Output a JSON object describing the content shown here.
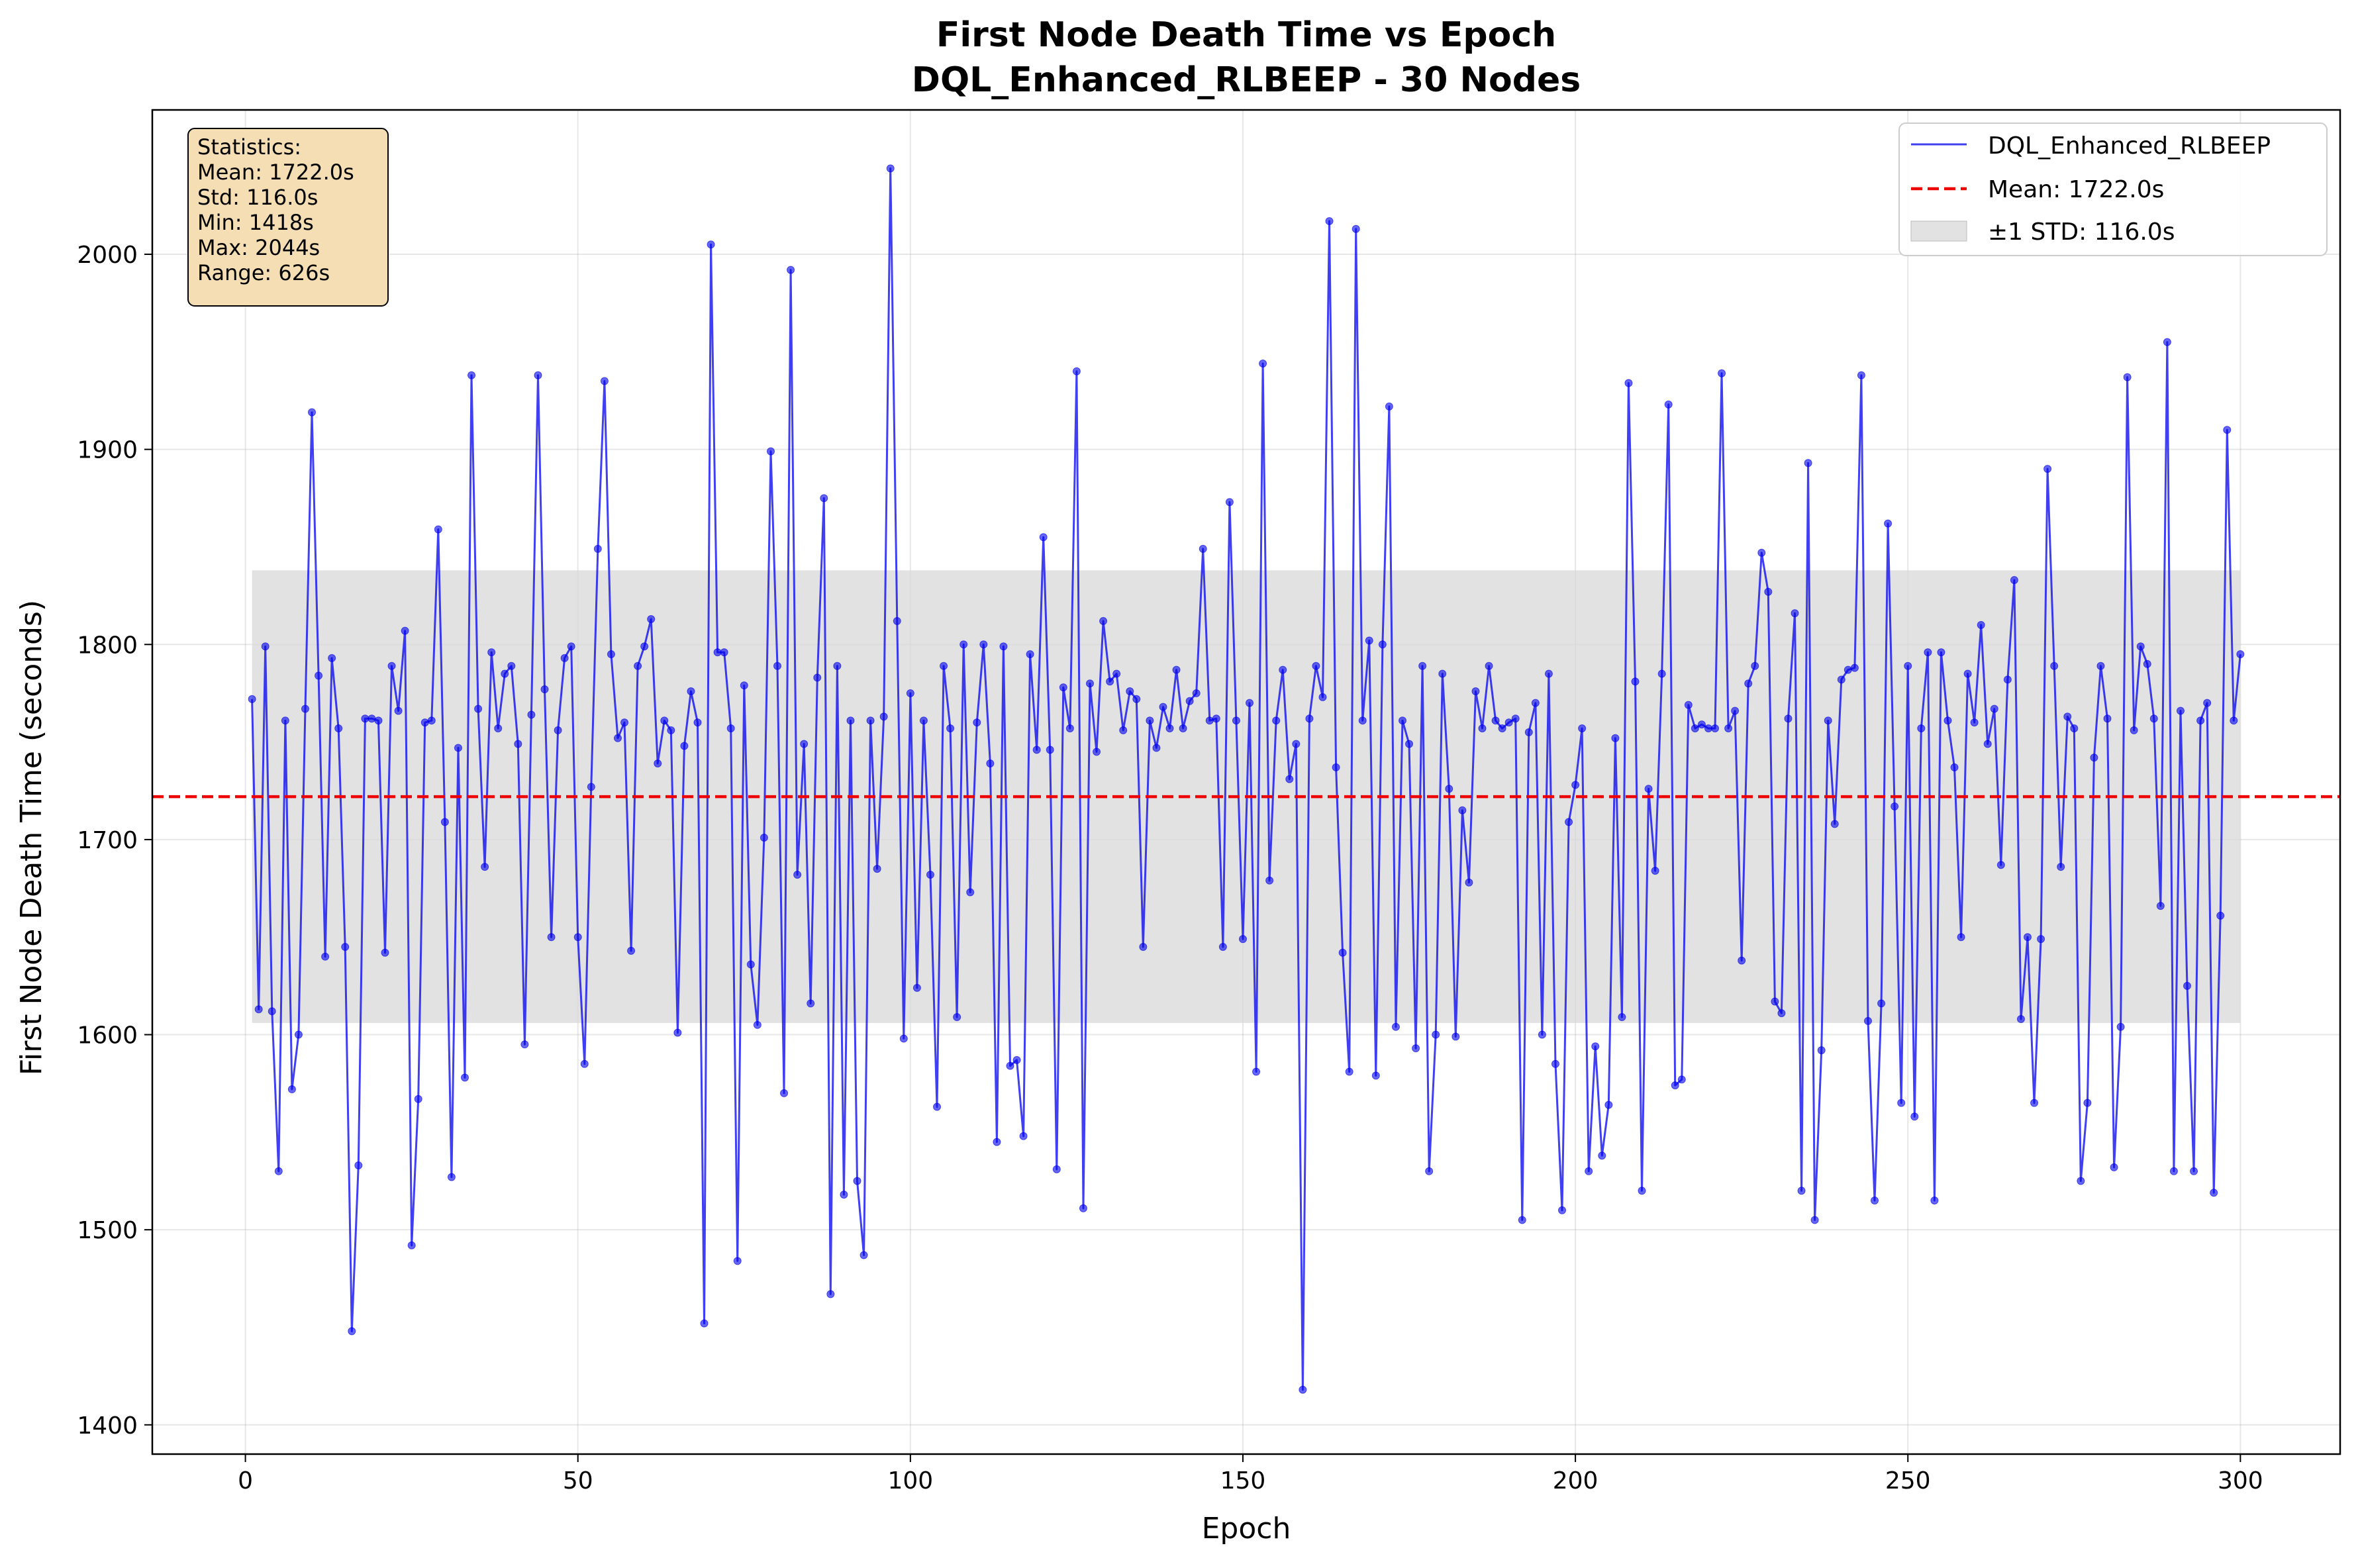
{
  "chart_data": {
    "type": "line",
    "title_line1": "First Node Death Time vs Epoch",
    "title_line2": "DQL_Enhanced_RLBEEP - 30 Nodes",
    "xlabel": "Epoch",
    "ylabel": "First Node Death Time (seconds)",
    "xlim": [
      -14,
      315
    ],
    "ylim": [
      1385,
      2074
    ],
    "xticks": [
      0,
      50,
      100,
      150,
      200,
      250,
      300
    ],
    "yticks": [
      1400,
      1500,
      1600,
      1700,
      1800,
      1900,
      2000
    ],
    "grid": true,
    "legend_position": "top-right",
    "legend": {
      "series_label": "DQL_Enhanced_RLBEEP",
      "mean_label": "Mean: 1722.0s",
      "std_label": "±1 STD: 116.0s"
    },
    "stats_box": {
      "position": "top-left",
      "lines": [
        "Statistics:",
        "Mean: 1722.0s",
        "Std: 116.0s",
        "Min: 1418s",
        "Max: 2044s",
        "Range: 626s"
      ]
    },
    "mean": 1722.0,
    "std": 116.0,
    "std_band": [
      1606,
      1838
    ],
    "colors": {
      "series": "#0000ee",
      "mean_line": "#ee0000",
      "band": "#d8d8d8",
      "stats_box_fill": "#f5deb3"
    },
    "series": [
      {
        "name": "DQL_Enhanced_RLBEEP",
        "x_start": 1,
        "x_step": 1,
        "values": [
          1772,
          1613,
          1799,
          1612,
          1530,
          1761,
          1572,
          1600,
          1767,
          1919,
          1784,
          1640,
          1793,
          1757,
          1645,
          1448,
          1533,
          1762,
          1762,
          1761,
          1642,
          1789,
          1766,
          1807,
          1492,
          1567,
          1760,
          1761,
          1859,
          1709,
          1527,
          1747,
          1578,
          1938,
          1767,
          1686,
          1796,
          1757,
          1785,
          1789,
          1749,
          1595,
          1764,
          1938,
          1777,
          1650,
          1756,
          1793,
          1799,
          1650,
          1585,
          1727,
          1849,
          1935,
          1795,
          1752,
          1760,
          1643,
          1789,
          1799,
          1813,
          1739,
          1761,
          1756,
          1601,
          1748,
          1776,
          1760,
          1452,
          2005,
          1796,
          1796,
          1757,
          1484,
          1779,
          1636,
          1605,
          1701,
          1899,
          1789,
          1570,
          1992,
          1682,
          1749,
          1616,
          1783,
          1875,
          1467,
          1789,
          1518,
          1761,
          1525,
          1487,
          1761,
          1685,
          1763,
          2044,
          1812,
          1598,
          1775,
          1624,
          1761,
          1682,
          1563,
          1789,
          1757,
          1609,
          1800,
          1673,
          1760,
          1800,
          1739,
          1545,
          1799,
          1584,
          1587,
          1548,
          1795,
          1746,
          1855,
          1746,
          1531,
          1778,
          1757,
          1940,
          1511,
          1780,
          1745,
          1812,
          1781,
          1785,
          1756,
          1776,
          1772,
          1645,
          1761,
          1747,
          1768,
          1757,
          1787,
          1757,
          1771,
          1775,
          1849,
          1761,
          1762,
          1645,
          1873,
          1761,
          1649,
          1770,
          1581,
          1944,
          1679,
          1761,
          1787,
          1731,
          1749,
          1418,
          1762,
          1789,
          1773,
          2017,
          1737,
          1642,
          1581,
          2013,
          1761,
          1802,
          1579,
          1800,
          1922,
          1604,
          1761,
          1749,
          1593,
          1789,
          1530,
          1600,
          1785,
          1726,
          1599,
          1715,
          1678,
          1776,
          1757,
          1789,
          1761,
          1757,
          1760,
          1762,
          1505,
          1755,
          1770,
          1600,
          1785,
          1585,
          1510,
          1709,
          1728,
          1757,
          1530,
          1594,
          1538,
          1564,
          1752,
          1609,
          1934,
          1781,
          1520,
          1726,
          1684,
          1785,
          1923,
          1574,
          1577,
          1769,
          1757,
          1759,
          1757,
          1757,
          1939,
          1757,
          1766,
          1638,
          1780,
          1789,
          1847,
          1827,
          1617,
          1611,
          1762,
          1816,
          1520,
          1893,
          1505,
          1592,
          1761,
          1708,
          1782,
          1787,
          1788,
          1938,
          1607,
          1515,
          1616,
          1862,
          1717,
          1565,
          1789,
          1558,
          1757,
          1796,
          1515,
          1796,
          1761,
          1737,
          1650,
          1785,
          1760,
          1810,
          1749,
          1767,
          1687,
          1782,
          1833,
          1608,
          1650,
          1565,
          1649,
          1890,
          1789,
          1686,
          1763,
          1757,
          1525,
          1565,
          1742,
          1789,
          1762,
          1532,
          1604,
          1937,
          1756,
          1799,
          1790,
          1762,
          1666,
          1955,
          1530,
          1766,
          1625,
          1530,
          1761,
          1770,
          1519,
          1661,
          1910,
          1761,
          1795
        ]
      }
    ]
  }
}
